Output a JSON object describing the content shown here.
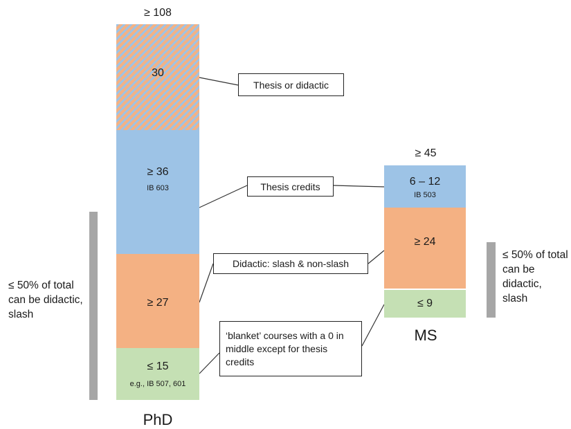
{
  "phd": {
    "name": "PhD",
    "total": "≥ 108",
    "segments": {
      "thesis_or_didactic": {
        "value": "30"
      },
      "thesis": {
        "value": "≥ 36",
        "course": "IB 603"
      },
      "didactic": {
        "value": "≥ 27"
      },
      "blanket": {
        "value": "≤ 15",
        "course": "e.g., IB 507, 601"
      }
    }
  },
  "ms": {
    "name": "MS",
    "total": "≥ 45",
    "segments": {
      "thesis": {
        "value": "6 – 12",
        "course": "IB 503"
      },
      "didactic": {
        "value": "≥ 24"
      },
      "blanket": {
        "value": "≤ 9"
      }
    }
  },
  "callouts": {
    "thesis_or_didactic": "Thesis or didactic",
    "thesis_credits": "Thesis credits",
    "didactic": "Didactic: slash & non-slash",
    "blanket": "‘blanket’ courses with a 0 in middle except for thesis credits"
  },
  "notes": {
    "left": "≤ 50% of total can be didactic, slash",
    "right": "≤ 50% of total can be didactic, slash"
  },
  "colors": {
    "thesis": "#9dc3e6",
    "didactic": "#f4b183",
    "blanket": "#c5e0b4",
    "hatch_stripe": "#9dc3e6",
    "bracket": "#a6a6a6"
  }
}
